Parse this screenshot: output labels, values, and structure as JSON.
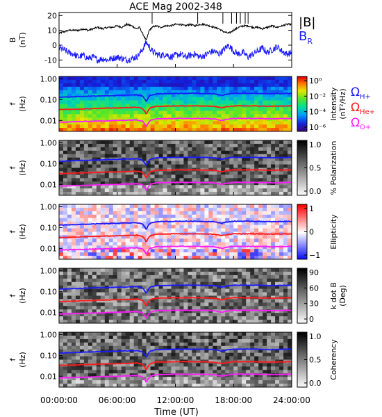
{
  "chart_data": {
    "type": "spectrogram",
    "title": "ACE Mag 2002-348",
    "x_axis": {
      "label": "Time (UT)",
      "ticks": [
        "00:00:00",
        "06:00:00",
        "12:00:00",
        "18:00:00",
        "24:00:00"
      ],
      "range_hours": [
        0,
        24
      ]
    },
    "panels": [
      {
        "id": "bfield",
        "type": "line",
        "ylabel": [
          "B",
          "(nT)"
        ],
        "ylim": [
          -15,
          22
        ],
        "yticks": [
          -10,
          0,
          10,
          20
        ],
        "legend": {
          "items": [
            {
              "label": "|B|",
              "color": "#000000"
            },
            {
              "label": "B_R",
              "color": "#1a1aff"
            }
          ],
          "placement": "right"
        },
        "series": [
          {
            "name": "|B|",
            "color": "#000000",
            "x": [
              0,
              0.5,
              1,
              1.5,
              2,
              2.5,
              3,
              3.5,
              4,
              4.5,
              5,
              5.5,
              6,
              6.5,
              7,
              7.5,
              8,
              8.3,
              8.6,
              9,
              9.3,
              9.6,
              10,
              10.5,
              11,
              11.5,
              12,
              12.5,
              13,
              13.5,
              14,
              14.5,
              15,
              15.5,
              16,
              16.5,
              17,
              17.5,
              18,
              18.5,
              19,
              19.5,
              20,
              20.5,
              21,
              21.5,
              22,
              22.5,
              23,
              23.5,
              24
            ],
            "y": [
              8,
              9,
              10,
              10,
              10,
              11,
              10,
              11,
              12,
              11,
              12,
              12,
              13,
              12,
              14,
              13,
              11,
              12,
              8,
              3,
              10,
              12,
              13,
              12,
              13,
              13,
              14,
              14,
              13,
              14,
              13,
              14,
              14,
              13,
              12,
              11,
              9,
              8,
              10,
              12,
              13,
              13,
              12,
              12,
              11,
              12,
              13,
              12,
              13,
              14,
              14
            ]
          },
          {
            "name": "B_R",
            "color": "#1a1aff",
            "x": [
              0,
              0.5,
              1,
              1.5,
              2,
              2.5,
              3,
              3.5,
              4,
              4.5,
              5,
              5.5,
              6,
              6.5,
              7,
              7.5,
              8,
              8.3,
              8.6,
              9,
              9.3,
              9.6,
              10,
              10.5,
              11,
              11.5,
              12,
              12.5,
              13,
              13.5,
              14,
              14.5,
              15,
              15.5,
              16,
              16.5,
              17,
              17.5,
              18,
              18.5,
              19,
              19.5,
              20,
              20.5,
              21,
              21.5,
              22,
              22.5,
              23,
              23.5,
              24
            ],
            "y": [
              -2,
              -3,
              -5,
              -6,
              -8,
              -7,
              -9,
              -8,
              -10,
              -9,
              -10,
              -9,
              -8,
              -9,
              -10,
              -9,
              -8,
              -6,
              -3,
              2,
              -1,
              -4,
              -6,
              -7,
              -6,
              -8,
              -7,
              -6,
              -8,
              -7,
              -6,
              -8,
              -7,
              -5,
              -4,
              -6,
              -3,
              0,
              -4,
              -6,
              -5,
              -8,
              -6,
              -4,
              -2,
              -5,
              -3,
              -1,
              -4,
              -6,
              -5
            ]
          }
        ]
      },
      {
        "id": "intensity",
        "type": "heatmap",
        "ylabel": [
          "f",
          "(Hz)"
        ],
        "yscale": "log",
        "ylim": [
          0.003,
          1.3
        ],
        "yticks": [
          "1.00",
          "0.10",
          "0.01"
        ],
        "colorbar": {
          "label": "Intensity",
          "units": "(nT²/Hz)",
          "ticks": [
            "10⁰",
            "10⁻²",
            "10⁻⁴",
            "10⁻⁶"
          ]
        },
        "annotations": [
          {
            "label": "Ω",
            "sub": "H+",
            "color": "#1a1aff"
          },
          {
            "label": "Ω",
            "sub": "He+",
            "color": "#ff1a1a"
          },
          {
            "label": "Ω",
            "sub": "O+",
            "color": "#ff1aff"
          }
        ]
      },
      {
        "id": "polarization",
        "type": "heatmap",
        "ylabel": [
          "f",
          "(Hz)"
        ],
        "yscale": "log",
        "yticks": [
          "1.00",
          "0.10",
          "0.01"
        ],
        "colorbar": {
          "label": "% Polarization",
          "ticks": [
            "1.0",
            "0.5",
            "0.0"
          ]
        }
      },
      {
        "id": "ellipticity",
        "type": "heatmap",
        "ylabel": [
          "f",
          "(Hz)"
        ],
        "yscale": "log",
        "yticks": [
          "1.00",
          "0.10",
          "0.01"
        ],
        "colorbar": {
          "label": "Ellipticity",
          "ticks": [
            "1",
            "0",
            "−1"
          ]
        }
      },
      {
        "id": "kdotb",
        "type": "heatmap",
        "ylabel": [
          "f",
          "(Hz)"
        ],
        "yscale": "log",
        "yticks": [
          "1.00",
          "0.10",
          "0.01"
        ],
        "colorbar": {
          "label": "k dot B",
          "units": "(Deg)",
          "ticks": [
            "90",
            "60",
            "30",
            "0"
          ]
        }
      },
      {
        "id": "coherency",
        "type": "heatmap",
        "ylabel": [
          "f",
          "(Hz)"
        ],
        "yscale": "log",
        "yticks": [
          "1.00",
          "0.10",
          "0.01"
        ],
        "colorbar": {
          "label": "Coherency",
          "ticks": [
            "1.0",
            "0.5",
            "0.0"
          ]
        }
      }
    ],
    "cyclotron_frequency_lines": [
      {
        "name": "Ω_H+",
        "color": "#1a1aff",
        "x": [
          0,
          2,
          4,
          6,
          8,
          8.6,
          9,
          9.4,
          10,
          12,
          14,
          16,
          16.8,
          17.2,
          18,
          20,
          22,
          24
        ],
        "y": [
          0.13,
          0.14,
          0.15,
          0.16,
          0.17,
          0.15,
          0.08,
          0.16,
          0.19,
          0.2,
          0.2,
          0.19,
          0.16,
          0.18,
          0.2,
          0.2,
          0.19,
          0.2
        ]
      },
      {
        "name": "Ω_He+",
        "color": "#ff1a1a",
        "x": [
          0,
          2,
          4,
          6,
          8,
          8.6,
          9,
          9.4,
          10,
          12,
          14,
          16,
          16.8,
          17.2,
          18,
          20,
          22,
          24
        ],
        "y": [
          0.033,
          0.035,
          0.038,
          0.04,
          0.043,
          0.038,
          0.02,
          0.04,
          0.048,
          0.05,
          0.05,
          0.048,
          0.04,
          0.045,
          0.05,
          0.05,
          0.048,
          0.05
        ]
      },
      {
        "name": "Ω_O+",
        "color": "#ff1aff",
        "x": [
          0,
          2,
          4,
          6,
          8,
          8.6,
          9,
          9.4,
          10,
          12,
          14,
          16,
          16.8,
          17.2,
          18,
          20,
          22,
          24
        ],
        "y": [
          0.0083,
          0.0088,
          0.0094,
          0.01,
          0.0107,
          0.0095,
          0.005,
          0.01,
          0.012,
          0.0125,
          0.0125,
          0.012,
          0.01,
          0.0112,
          0.0125,
          0.0125,
          0.012,
          0.0125
        ]
      }
    ],
    "event_markers_hours": [
      9.6,
      14.3,
      16.9,
      17.8,
      18.3,
      18.7,
      19.2,
      19.5
    ]
  }
}
